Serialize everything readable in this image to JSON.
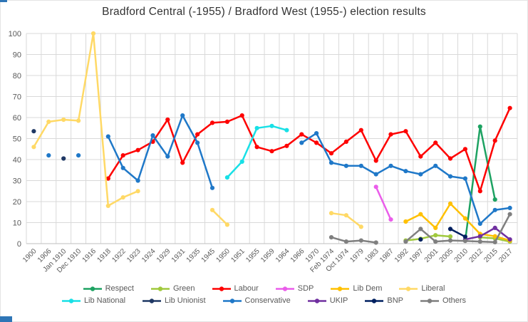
{
  "chart_data": {
    "type": "line",
    "title": "Bradford Central (-1955) / Bradford West (1955-) election results",
    "xlabel": "",
    "ylabel": "",
    "grid": true,
    "legend_position": "bottom",
    "y_axis": {
      "min": 0,
      "max": 100,
      "step": 10,
      "ticks": [
        "0",
        "10",
        "20",
        "30",
        "40",
        "50",
        "60",
        "70",
        "80",
        "90",
        "100"
      ]
    },
    "categories": [
      "1900",
      "1906",
      "Jan 1910",
      "Dec 1910",
      "1916",
      "1918",
      "1922",
      "1923",
      "1924",
      "1929",
      "1931",
      "1935",
      "1945",
      "1950",
      "1951",
      "1955",
      "1959",
      "1964",
      "1966",
      "1970",
      "Feb 1974",
      "Oct 1974",
      "1979",
      "1983",
      "1987",
      "1992",
      "1997",
      "2001",
      "2005",
      "2010",
      "2012",
      "2015",
      "2017"
    ],
    "series": [
      {
        "id": "respect",
        "name": "Respect",
        "color": "#1DA262",
        "values": [
          null,
          null,
          null,
          null,
          null,
          null,
          null,
          null,
          null,
          null,
          null,
          null,
          null,
          null,
          null,
          null,
          null,
          null,
          null,
          null,
          null,
          null,
          null,
          null,
          null,
          null,
          null,
          null,
          null,
          1.5,
          55.7,
          21,
          null
        ]
      },
      {
        "id": "green",
        "name": "Green",
        "color": "#A0C93D",
        "values": [
          null,
          null,
          null,
          null,
          null,
          null,
          null,
          null,
          null,
          null,
          null,
          null,
          null,
          null,
          null,
          null,
          null,
          null,
          null,
          null,
          null,
          null,
          null,
          null,
          null,
          1.5,
          2.3,
          4,
          3.4,
          null,
          3,
          2.5,
          1
        ]
      },
      {
        "id": "labour",
        "name": "Labour",
        "color": "#FE0000",
        "values": [
          null,
          null,
          null,
          null,
          null,
          31,
          42,
          44.5,
          48.5,
          59,
          38.5,
          52,
          57.5,
          58,
          61,
          46,
          44,
          46.5,
          52,
          48,
          43,
          48.5,
          54,
          39.5,
          52,
          53.5,
          41.5,
          48,
          40.5,
          45,
          25,
          49,
          64.5
        ]
      },
      {
        "id": "sdp",
        "name": "SDP",
        "color": "#EA5DEA",
        "values": [
          null,
          null,
          null,
          null,
          null,
          null,
          null,
          null,
          null,
          null,
          null,
          null,
          null,
          null,
          null,
          null,
          null,
          null,
          null,
          null,
          null,
          null,
          null,
          27,
          11.5,
          null,
          null,
          null,
          null,
          null,
          null,
          null,
          null
        ]
      },
      {
        "id": "lib-dem",
        "name": "Lib Dem",
        "color": "#FFC000",
        "values": [
          null,
          null,
          null,
          null,
          null,
          null,
          null,
          null,
          null,
          null,
          null,
          null,
          null,
          null,
          null,
          null,
          null,
          null,
          null,
          null,
          null,
          null,
          null,
          null,
          null,
          10.5,
          14,
          7.5,
          19,
          12,
          4.6,
          3.5,
          1.5
        ]
      },
      {
        "id": "liberal",
        "name": "Liberal",
        "color": "#FFD966",
        "values": [
          46,
          58,
          59,
          58.5,
          100,
          18,
          22,
          25,
          null,
          null,
          null,
          null,
          16,
          9,
          null,
          null,
          null,
          null,
          null,
          null,
          14.5,
          13.5,
          8,
          null,
          null,
          null,
          null,
          null,
          null,
          null,
          null,
          null,
          null
        ]
      },
      {
        "id": "lib-national",
        "name": "Lib National",
        "color": "#18E0E6",
        "values": [
          null,
          null,
          null,
          null,
          null,
          null,
          null,
          null,
          null,
          null,
          null,
          null,
          null,
          31.5,
          39,
          55,
          56,
          54,
          null,
          null,
          null,
          null,
          null,
          null,
          null,
          null,
          null,
          null,
          null,
          null,
          null,
          null,
          null
        ]
      },
      {
        "id": "lib-unionist",
        "name": "Lib Unionist",
        "color": "#1F3864",
        "values": [
          53.5,
          null,
          40.5,
          null,
          null,
          null,
          null,
          null,
          null,
          null,
          null,
          null,
          null,
          null,
          null,
          null,
          null,
          null,
          null,
          null,
          null,
          null,
          null,
          null,
          null,
          null,
          null,
          null,
          null,
          null,
          null,
          null,
          null
        ]
      },
      {
        "id": "conservative",
        "name": "Conservative",
        "color": "#1F78C8",
        "values": [
          null,
          42,
          null,
          42,
          null,
          51,
          36,
          30,
          51.5,
          41.5,
          61,
          48,
          26.5,
          null,
          null,
          null,
          null,
          null,
          48,
          52.5,
          38.5,
          37,
          37,
          33,
          37,
          34.5,
          33,
          37,
          32,
          31,
          9.5,
          16,
          17
        ]
      },
      {
        "id": "ukip",
        "name": "UKIP",
        "color": "#7030A0",
        "values": [
          null,
          null,
          null,
          null,
          null,
          null,
          null,
          null,
          null,
          null,
          null,
          null,
          null,
          null,
          null,
          null,
          null,
          null,
          null,
          null,
          null,
          null,
          null,
          null,
          null,
          null,
          null,
          null,
          null,
          2,
          3.5,
          7.5,
          2
        ]
      },
      {
        "id": "bnp",
        "name": "BNP",
        "color": "#002060",
        "values": [
          null,
          null,
          null,
          null,
          null,
          null,
          null,
          null,
          null,
          null,
          null,
          null,
          null,
          null,
          null,
          null,
          null,
          null,
          null,
          null,
          null,
          null,
          null,
          null,
          null,
          null,
          2,
          null,
          7,
          3.3,
          null,
          null,
          null
        ]
      },
      {
        "id": "others",
        "name": "Others",
        "color": "#7F7F7F",
        "values": [
          null,
          null,
          null,
          null,
          null,
          null,
          null,
          null,
          null,
          null,
          null,
          null,
          null,
          null,
          null,
          null,
          null,
          null,
          null,
          null,
          3,
          1,
          1.5,
          0.5,
          null,
          1,
          7,
          1,
          1.5,
          1.3,
          1,
          0.7,
          14
        ]
      }
    ]
  }
}
